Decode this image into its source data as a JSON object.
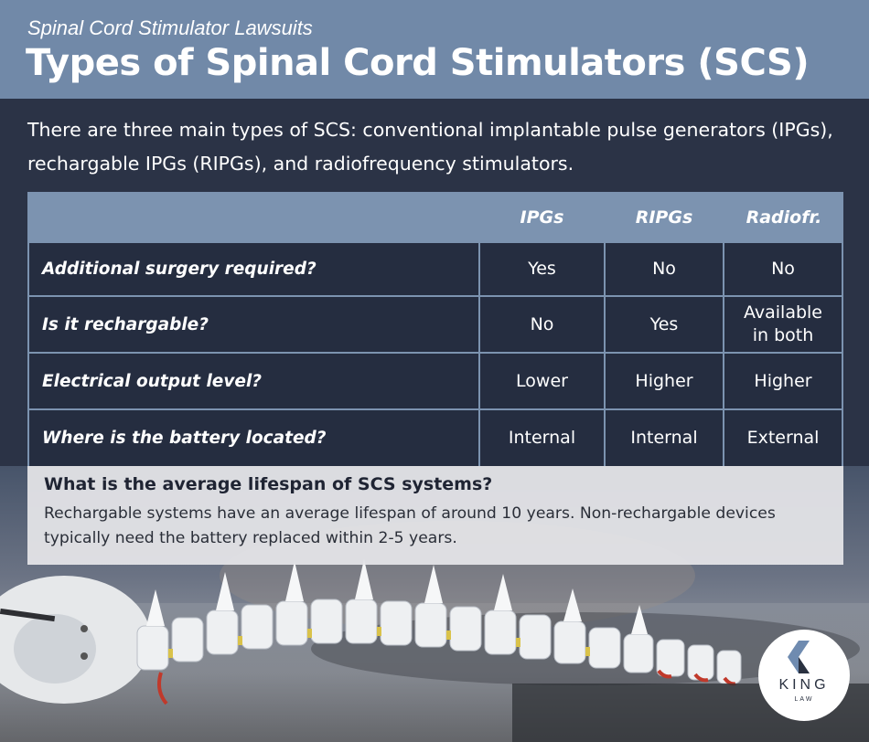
{
  "header": {
    "subtitle": "Spinal Cord Stimulator Lawsuits",
    "title": "Types of Spinal Cord Stimulators (SCS)"
  },
  "intro": "There are three main types of SCS: conventional implantable pulse generators (IPGs), rechargable IPGs (RIPGs), and radiofrequency stimulators.",
  "table": {
    "columns": [
      "IPGs",
      "RIPGs",
      "Radiofr."
    ],
    "rows": [
      {
        "label": "Additional surgery required?",
        "values": [
          "Yes",
          "No",
          "No"
        ]
      },
      {
        "label": "Is it rechargable?",
        "values": [
          "No",
          "Yes",
          "Available in both"
        ]
      },
      {
        "label": "Electrical output level?",
        "values": [
          "Lower",
          "Higher",
          "Higher"
        ]
      },
      {
        "label": "Where is the battery located?",
        "values": [
          "Internal",
          "Internal",
          "External"
        ]
      }
    ]
  },
  "lifespan": {
    "title": "What is the average lifespan of SCS systems?",
    "body": "Rechargable systems have an average lifespan of around 10 years. Non-rechargable devices typically need the battery replaced within 2-5 years."
  },
  "logo": {
    "name": "KING",
    "sub": "LAW",
    "icon": "chevron-left-icon"
  },
  "colors": {
    "header_bg": "#7189a8",
    "panel_bg": "#2b3346",
    "cell_bg": "#252d40",
    "grid": "#7c93b0",
    "accent_red": "#c0392b",
    "accent_yellow": "#d9c24a"
  }
}
